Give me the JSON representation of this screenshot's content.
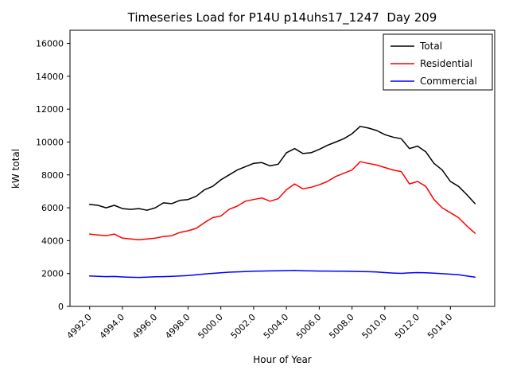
{
  "window": {
    "background": "#ffffff"
  },
  "chart_data": {
    "type": "line",
    "title": "Timeseries Load for P14U p14uhs17_1247  Day 209",
    "xlabel": "Hour of Year",
    "ylabel": "kW total",
    "xlim": [
      4990.8,
      5016.7
    ],
    "ylim": [
      0,
      16800
    ],
    "grid": false,
    "legend_position": "upper right",
    "x_ticks": [
      4992,
      4994,
      4996,
      4998,
      5000,
      5002,
      5004,
      5006,
      5008,
      5010,
      5012,
      5014
    ],
    "x_tick_labels": [
      "4992.0",
      "4994.0",
      "4996.0",
      "4998.0",
      "5000.0",
      "5002.0",
      "5004.0",
      "5006.0",
      "5008.0",
      "5010.0",
      "5012.0",
      "5014.0"
    ],
    "y_ticks": [
      0,
      2000,
      4000,
      6000,
      8000,
      10000,
      12000,
      14000,
      16000
    ],
    "y_tick_labels": [
      "0",
      "2000",
      "4000",
      "6000",
      "8000",
      "10000",
      "12000",
      "14000",
      "16000"
    ],
    "x": [
      4992.0,
      4992.5,
      4993.0,
      4993.5,
      4994.0,
      4994.5,
      4995.0,
      4995.5,
      4996.0,
      4996.5,
      4997.0,
      4997.5,
      4998.0,
      4998.5,
      4999.0,
      4999.5,
      5000.0,
      5000.5,
      5001.0,
      5001.5,
      5002.0,
      5002.5,
      5003.0,
      5003.5,
      5004.0,
      5004.5,
      5005.0,
      5005.5,
      5006.0,
      5006.5,
      5007.0,
      5007.5,
      5008.0,
      5008.5,
      5009.0,
      5009.5,
      5010.0,
      5010.5,
      5011.0,
      5011.5,
      5012.0,
      5012.5,
      5013.0,
      5013.5,
      5014.0,
      5014.5,
      5015.0,
      5015.5
    ],
    "series": [
      {
        "name": "Total",
        "color": "#000000",
        "values": [
          6200,
          6150,
          6000,
          6150,
          5950,
          5900,
          5950,
          5850,
          6000,
          6300,
          6250,
          6450,
          6500,
          6700,
          7100,
          7300,
          7700,
          8000,
          8300,
          8500,
          8700,
          8750,
          8550,
          8650,
          9350,
          9600,
          9300,
          9350,
          9550,
          9800,
          10000,
          10200,
          10500,
          10950,
          10850,
          10700,
          10450,
          10300,
          10200,
          9600,
          9750,
          9400,
          8700,
          8300,
          7600,
          7300,
          6800,
          6250
        ]
      },
      {
        "name": "Residential",
        "color": "#ff0000",
        "values": [
          4400,
          4350,
          4300,
          4400,
          4150,
          4100,
          4050,
          4100,
          4150,
          4250,
          4300,
          4500,
          4600,
          4750,
          5100,
          5400,
          5500,
          5900,
          6100,
          6400,
          6500,
          6600,
          6400,
          6550,
          7100,
          7450,
          7150,
          7250,
          7400,
          7600,
          7900,
          8100,
          8300,
          8800,
          8700,
          8600,
          8450,
          8300,
          8200,
          7450,
          7600,
          7300,
          6500,
          6000,
          5700,
          5400,
          4900,
          4450
        ]
      },
      {
        "name": "Commercial",
        "color": "#0000ff",
        "values": [
          1850,
          1830,
          1810,
          1820,
          1790,
          1770,
          1760,
          1780,
          1800,
          1810,
          1830,
          1850,
          1880,
          1920,
          1970,
          2010,
          2050,
          2080,
          2100,
          2120,
          2140,
          2150,
          2160,
          2170,
          2180,
          2190,
          2170,
          2160,
          2150,
          2150,
          2140,
          2140,
          2130,
          2120,
          2110,
          2090,
          2060,
          2030,
          2010,
          2040,
          2060,
          2050,
          2020,
          1990,
          1960,
          1920,
          1850,
          1780
        ]
      }
    ]
  }
}
